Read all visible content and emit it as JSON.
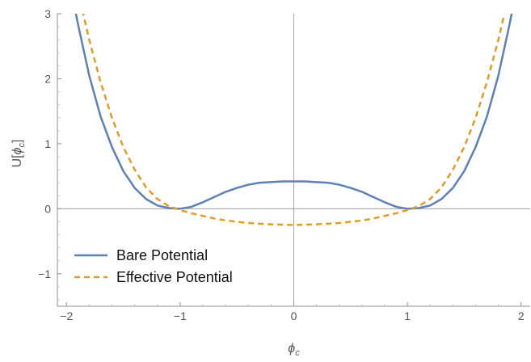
{
  "chart_data": {
    "type": "line",
    "title": "",
    "xlabel": {
      "base": "ϕ",
      "sub": "c"
    },
    "ylabel": {
      "prefix": "U[",
      "base": "ϕ",
      "sub": "c",
      "suffix": "]"
    },
    "xlim": [
      -2.08,
      2.08
    ],
    "ylim": [
      -1.5,
      3.0
    ],
    "xticks": [
      {
        "value": -2,
        "label": "−2"
      },
      {
        "value": -1,
        "label": "−1"
      },
      {
        "value": 0,
        "label": "0"
      },
      {
        "value": 1,
        "label": "1"
      },
      {
        "value": 2,
        "label": "2"
      }
    ],
    "yticks": [
      {
        "value": -1,
        "label": "−1"
      },
      {
        "value": 0,
        "label": "0"
      },
      {
        "value": 1,
        "label": "1"
      },
      {
        "value": 2,
        "label": "2"
      },
      {
        "value": 3,
        "label": "3"
      }
    ],
    "grid": false,
    "legend_position": "bottom-left",
    "series": [
      {
        "name": "Bare Potential",
        "color": "#5e81b5",
        "style": "solid",
        "x": [
          -1.95,
          -1.9,
          -1.8,
          -1.7,
          -1.6,
          -1.5,
          -1.4,
          -1.3,
          -1.2,
          -1.1,
          -1.0,
          -0.9,
          -0.8,
          -0.7,
          -0.6,
          -0.5,
          -0.4,
          -0.3,
          -0.2,
          -0.1,
          0.0,
          0.1,
          0.2,
          0.3,
          0.4,
          0.5,
          0.6,
          0.7,
          0.8,
          0.9,
          1.0,
          1.1,
          1.2,
          1.3,
          1.4,
          1.5,
          1.6,
          1.7,
          1.8,
          1.9,
          1.95
        ],
        "y": [
          3.3,
          2.85,
          2.05,
          1.42,
          0.95,
          0.58,
          0.32,
          0.15,
          0.05,
          0.01,
          0.0,
          0.03,
          0.1,
          0.18,
          0.26,
          0.32,
          0.37,
          0.4,
          0.41,
          0.42,
          0.42,
          0.42,
          0.41,
          0.4,
          0.37,
          0.32,
          0.26,
          0.18,
          0.1,
          0.03,
          0.0,
          0.01,
          0.05,
          0.15,
          0.32,
          0.58,
          0.95,
          1.42,
          2.05,
          2.85,
          3.3
        ]
      },
      {
        "name": "Effective Potential",
        "color": "#e19c24",
        "style": "dashed",
        "x": [
          -1.88,
          -1.8,
          -1.7,
          -1.6,
          -1.5,
          -1.4,
          -1.3,
          -1.2,
          -1.1,
          -1.0,
          -0.9,
          -0.8,
          -0.7,
          -0.6,
          -0.5,
          -0.4,
          -0.3,
          -0.2,
          -0.1,
          0.0,
          0.1,
          0.2,
          0.3,
          0.4,
          0.5,
          0.6,
          0.7,
          0.8,
          0.9,
          1.0,
          1.1,
          1.2,
          1.3,
          1.4,
          1.5,
          1.6,
          1.7,
          1.8,
          1.88
        ],
        "y": [
          3.2,
          2.6,
          1.95,
          1.4,
          0.95,
          0.6,
          0.33,
          0.15,
          0.04,
          -0.02,
          -0.07,
          -0.11,
          -0.15,
          -0.18,
          -0.2,
          -0.22,
          -0.23,
          -0.24,
          -0.245,
          -0.25,
          -0.245,
          -0.24,
          -0.23,
          -0.22,
          -0.2,
          -0.18,
          -0.15,
          -0.11,
          -0.07,
          -0.02,
          0.04,
          0.15,
          0.33,
          0.6,
          0.95,
          1.4,
          1.95,
          2.6,
          3.2
        ]
      }
    ]
  }
}
